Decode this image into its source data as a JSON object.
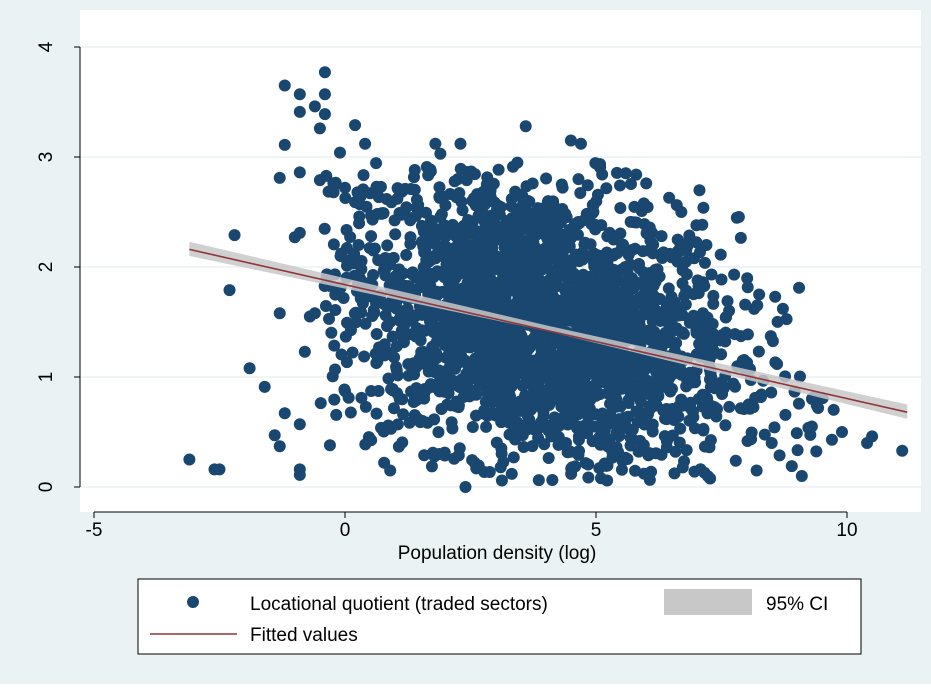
{
  "chart_data": {
    "type": "scatter",
    "title": "",
    "xlabel": "Population density (log)",
    "ylabel": "",
    "xlim": [
      -5,
      11.4
    ],
    "ylim": [
      0,
      4
    ],
    "xticks": [
      -5,
      0,
      5,
      10
    ],
    "yticks": [
      0,
      1,
      2,
      3,
      4
    ],
    "grid": true,
    "legend_position": "bottom",
    "colors": {
      "scatter": "#1a476f",
      "fit": "#90353b",
      "ci": "#c8c8c8",
      "background_outer": "#eaf2f3",
      "plot_bg": "#ffffff"
    },
    "series": [
      {
        "name": "Locational quotient (traded sectors)",
        "kind": "scatter",
        "points": [
          [
            -3.1,
            0.25
          ],
          [
            -2.6,
            0.16
          ],
          [
            -2.5,
            0.16
          ],
          [
            -2.3,
            1.79
          ],
          [
            -2.2,
            2.29
          ],
          [
            -1.9,
            1.08
          ],
          [
            -1.6,
            0.91
          ],
          [
            -1.4,
            0.47
          ],
          [
            -1.3,
            0.37
          ],
          [
            -1.3,
            1.58
          ],
          [
            -1.3,
            2.81
          ],
          [
            -1.2,
            3.11
          ],
          [
            -1.2,
            0.67
          ],
          [
            -1.2,
            3.65
          ],
          [
            -1.0,
            2.27
          ],
          [
            -0.9,
            2.31
          ],
          [
            -0.9,
            3.57
          ],
          [
            -0.9,
            3.41
          ],
          [
            -0.9,
            2.86
          ],
          [
            -0.9,
            0.57
          ],
          [
            -0.9,
            0.16
          ],
          [
            -0.9,
            0.11
          ],
          [
            -0.8,
            1.23
          ],
          [
            -0.7,
            1.55
          ],
          [
            -0.6,
            1.58
          ],
          [
            -0.6,
            3.46
          ],
          [
            -0.5,
            3.26
          ],
          [
            -0.5,
            2.79
          ],
          [
            -0.4,
            3.77
          ],
          [
            -0.4,
            3.57
          ],
          [
            -0.4,
            3.39
          ],
          [
            -0.3,
            0.38
          ],
          [
            -0.2,
            2.75
          ],
          [
            -0.1,
            3.04
          ],
          [
            0.0,
            2.72
          ],
          [
            0.2,
            3.29
          ],
          [
            0.4,
            3.12
          ],
          [
            0.5,
            2.67
          ],
          [
            0.9,
            0.15
          ],
          [
            1.2,
            2.71
          ],
          [
            1.5,
            0.59
          ],
          [
            1.8,
            3.12
          ],
          [
            1.9,
            3.03
          ],
          [
            2.3,
            3.12
          ],
          [
            2.4,
            0.0
          ],
          [
            3.6,
            3.28
          ],
          [
            4.5,
            3.15
          ],
          [
            4.7,
            3.12
          ],
          [
            5.1,
            0.08
          ],
          [
            5.8,
            2.84
          ],
          [
            6.0,
            2.76
          ],
          [
            6.7,
            2.5
          ],
          [
            7.2,
            2.2
          ],
          [
            8.2,
            0.15
          ],
          [
            8.5,
            0.4
          ],
          [
            8.9,
            0.19
          ],
          [
            9.0,
            0.49
          ],
          [
            9.1,
            0.1
          ],
          [
            9.3,
            0.55
          ],
          [
            9.4,
            0.74
          ],
          [
            9.7,
            0.43
          ],
          [
            9.9,
            0.5
          ],
          [
            10.4,
            0.4
          ],
          [
            10.5,
            0.46
          ],
          [
            11.1,
            0.33
          ]
        ]
      },
      {
        "name": "Fitted values",
        "kind": "line",
        "x": [
          -3.1,
          11.2
        ],
        "y": [
          2.16,
          0.68
        ]
      },
      {
        "name": "95% CI",
        "kind": "band",
        "x": [
          -3.1,
          4.0,
          11.2
        ],
        "lower": [
          2.1,
          1.42,
          0.62
        ],
        "upper": [
          2.23,
          1.47,
          0.75
        ]
      }
    ],
    "dense_cloud": {
      "center": [
        3.8,
        1.5
      ],
      "spread": [
        2.0,
        0.65
      ],
      "count": 2600
    }
  }
}
